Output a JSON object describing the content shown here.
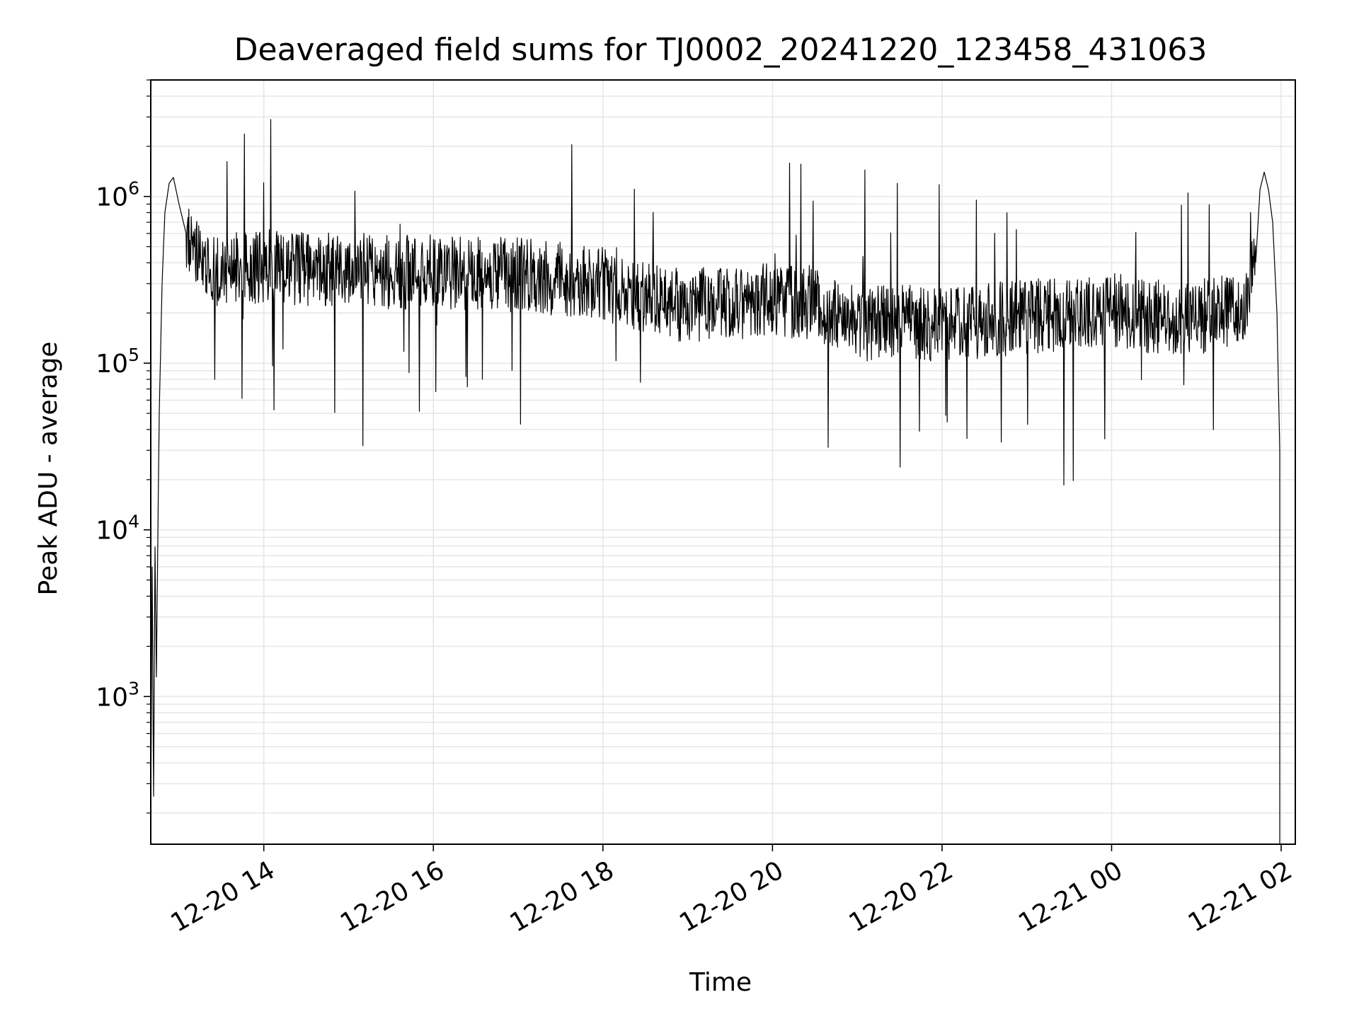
{
  "chart_data": {
    "type": "line",
    "title": "Deaveraged field sums for TJ0002_20241220_123458_431063",
    "xlabel": "Time",
    "ylabel": "Peak ADU - average",
    "y_scale": "log",
    "ylim": [
      130,
      5000000
    ],
    "xlim": [
      "2024-12-20 12:40",
      "2024-12-21 02:10"
    ],
    "grid": true,
    "legend": "none",
    "line_color": "#000000",
    "grid_color": "#e6e6e6",
    "x_ticks": [
      {
        "time": "2024-12-20 14:00",
        "label": "12-20 14"
      },
      {
        "time": "2024-12-20 16:00",
        "label": "12-20 16"
      },
      {
        "time": "2024-12-20 18:00",
        "label": "12-20 18"
      },
      {
        "time": "2024-12-20 20:00",
        "label": "12-20 20"
      },
      {
        "time": "2024-12-20 22:00",
        "label": "12-20 22"
      },
      {
        "time": "2024-12-21 00:00",
        "label": "12-21 00"
      },
      {
        "time": "2024-12-21 02:00",
        "label": "12-21 02"
      }
    ],
    "y_ticks": [
      {
        "value": 1000,
        "base": "10",
        "exp": "3"
      },
      {
        "value": 10000,
        "base": "10",
        "exp": "4"
      },
      {
        "value": 100000,
        "base": "10",
        "exp": "5"
      },
      {
        "value": 1000000,
        "base": "10",
        "exp": "6"
      }
    ],
    "series": [
      {
        "x": [
          "2024-12-20 12:40",
          "2024-12-20 12:41",
          "2024-12-20 12:42",
          "2024-12-20 12:43",
          "2024-12-20 12:44",
          "2024-12-20 12:45",
          "2024-12-20 12:46",
          "2024-12-20 12:48",
          "2024-12-20 12:50",
          "2024-12-20 12:53",
          "2024-12-20 12:56",
          "2024-12-20 13:00",
          "2024-12-20 13:05",
          "2024-12-20 13:10",
          "2024-12-20 13:20",
          "2024-12-20 13:30",
          "2024-12-20 13:45",
          "2024-12-20 14:00",
          "2024-12-20 14:30",
          "2024-12-20 15:00",
          "2024-12-20 15:30",
          "2024-12-20 16:00",
          "2024-12-20 16:30",
          "2024-12-20 17:00",
          "2024-12-20 17:30",
          "2024-12-20 18:00",
          "2024-12-20 18:30",
          "2024-12-20 19:00",
          "2024-12-20 19:30",
          "2024-12-20 20:00",
          "2024-12-20 20:30",
          "2024-12-20 21:00",
          "2024-12-20 21:30",
          "2024-12-20 22:00",
          "2024-12-20 22:30",
          "2024-12-20 23:00",
          "2024-12-20 23:30",
          "2024-12-21 00:00",
          "2024-12-21 00:30",
          "2024-12-21 01:00",
          "2024-12-21 01:20",
          "2024-12-21 01:35",
          "2024-12-21 01:42",
          "2024-12-21 01:45",
          "2024-12-21 01:48",
          "2024-12-21 01:51",
          "2024-12-21 01:54",
          "2024-12-21 01:57",
          "2024-12-21 01:59"
        ],
        "values": [
          200,
          6000,
          250,
          8000,
          1300,
          9000,
          50000,
          300000,
          800000,
          1200000,
          1300000,
          900000,
          600000,
          450000,
          380000,
          350000,
          370000,
          380000,
          360000,
          380000,
          350000,
          360000,
          340000,
          340000,
          320000,
          300000,
          250000,
          220000,
          230000,
          240000,
          230000,
          170000,
          180000,
          170000,
          180000,
          190000,
          200000,
          210000,
          190000,
          190000,
          200000,
          230000,
          400000,
          1100000,
          1400000,
          1100000,
          700000,
          200000,
          30000
        ],
        "drop_end": 130
      }
    ]
  }
}
